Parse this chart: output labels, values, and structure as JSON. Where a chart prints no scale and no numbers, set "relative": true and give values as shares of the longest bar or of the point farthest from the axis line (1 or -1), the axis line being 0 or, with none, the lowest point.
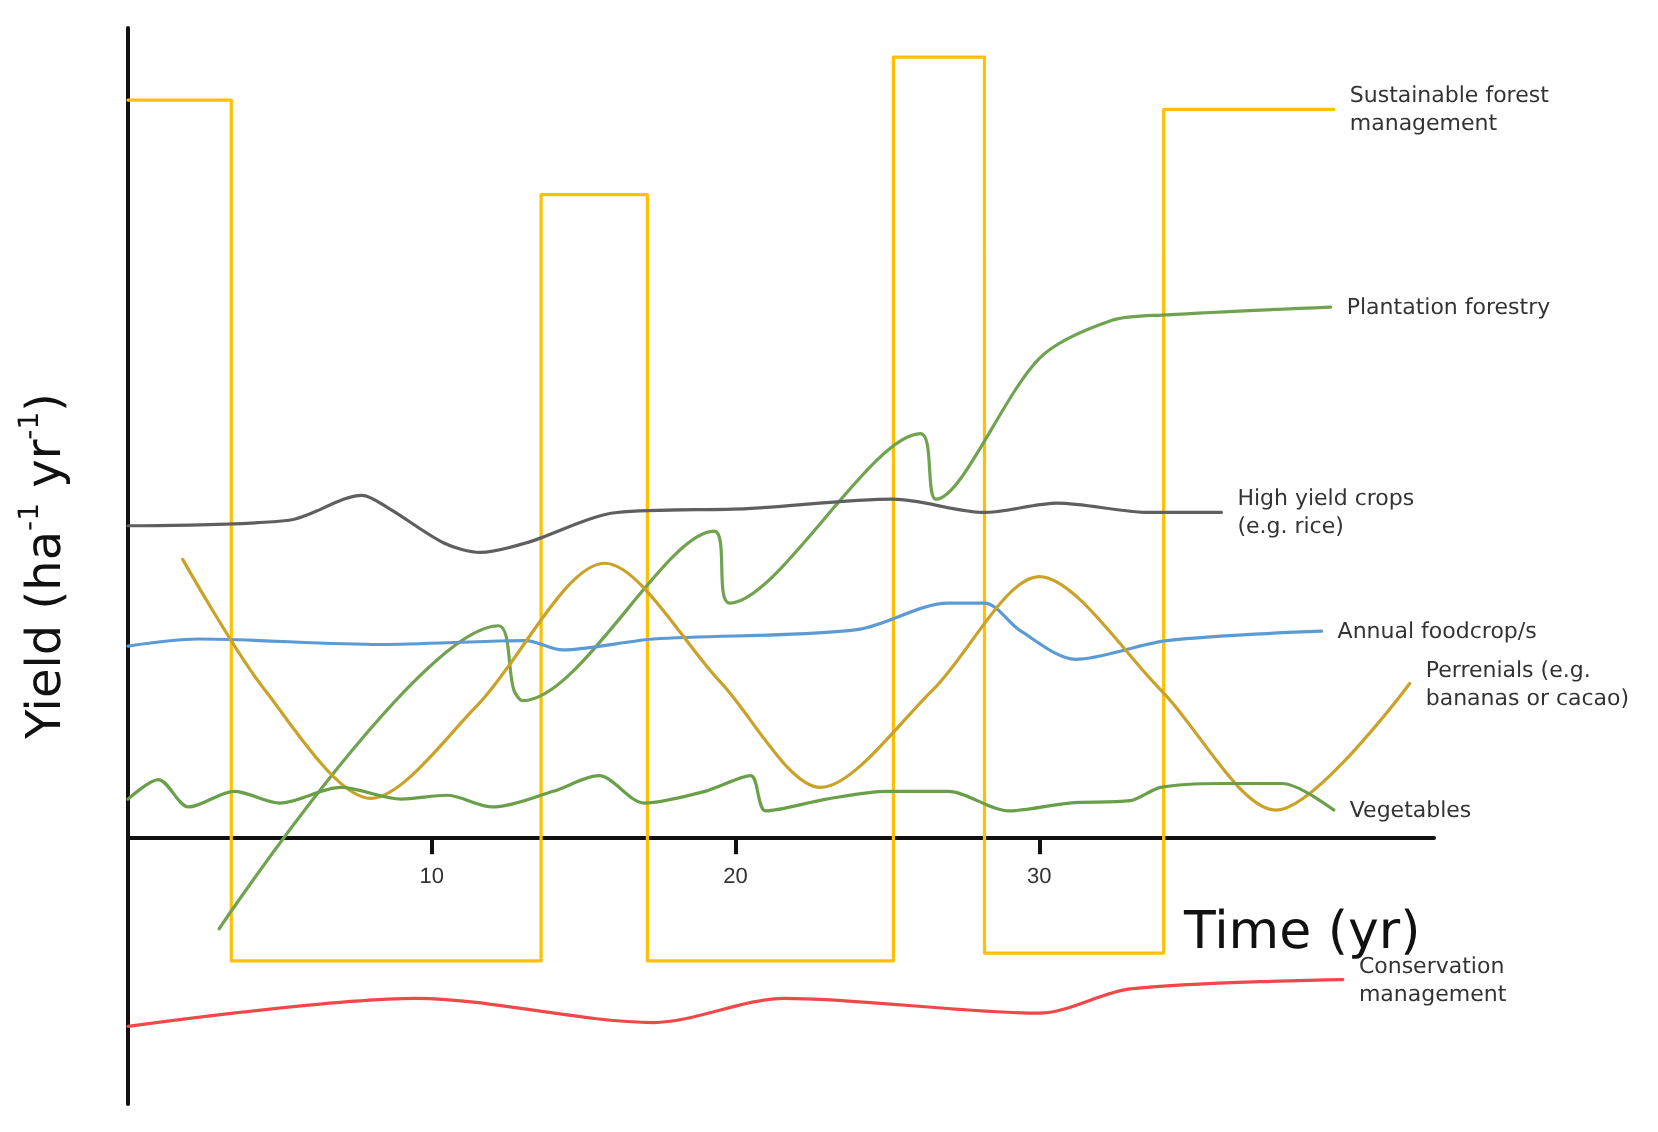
{
  "chart_data": {
    "type": "line",
    "relative": true,
    "xlabel": "Time (yr)",
    "ylabel": "Yield (ha$^{-1}$ yr$^{-1}$)",
    "xlim": [
      0,
      43
    ],
    "xticks": [
      10,
      20,
      30
    ],
    "legend": false,
    "grid": false,
    "marker": "none",
    "series": [
      {
        "name": "Sustainable forest management",
        "type": "step",
        "color": "#ffc000",
        "x": [
          0,
          3.4,
          13.6,
          17.1,
          25.2,
          28.2,
          34.1,
          39.7
        ],
        "values": [
          0.945,
          -0.157,
          0.824,
          -0.157,
          1.0,
          -0.147,
          0.933,
          0.933
        ]
      },
      {
        "name": "Plantation forestry",
        "color": "#70a24f",
        "x": [
          3.0,
          12.2,
          12.7,
          13.0,
          19.3,
          19.8,
          26.1,
          26.6,
          30,
          32.4,
          34.2,
          39.6
        ],
        "values": [
          -0.116,
          0.272,
          0.19,
          0.176,
          0.393,
          0.301,
          0.518,
          0.434,
          0.614,
          0.663,
          0.67,
          0.68
        ]
      },
      {
        "name": "High yield crops (e.g. rice)",
        "color": "#5f5f5f",
        "x": [
          0,
          5.3,
          7.7,
          8.6,
          10.4,
          11.6,
          13.1,
          16.1,
          20.4,
          25.2,
          28.2,
          30.6,
          33.6,
          36
        ],
        "values": [
          0.4,
          0.407,
          0.439,
          0.422,
          0.378,
          0.366,
          0.378,
          0.417,
          0.422,
          0.434,
          0.417,
          0.429,
          0.417,
          0.417
        ]
      },
      {
        "name": "Annual foodcrop/s",
        "color": "#5b9bd5",
        "x": [
          0,
          2.3,
          8.3,
          13.1,
          14.3,
          17.3,
          24,
          27,
          28.2,
          29.4,
          31.2,
          34.2,
          39.3
        ],
        "values": [
          0.246,
          0.255,
          0.248,
          0.253,
          0.241,
          0.255,
          0.267,
          0.301,
          0.301,
          0.265,
          0.229,
          0.253,
          0.265
        ]
      },
      {
        "name": "Perrenials (e.g. bananas or cacao)",
        "color": "#c9a227",
        "x": [
          1.8,
          4.5,
          8,
          11.5,
          15.7,
          19.5,
          22.8,
          26.5,
          30,
          34,
          37.8,
          42.2
        ],
        "values": [
          0.357,
          0.19,
          0.051,
          0.17,
          0.352,
          0.2,
          0.065,
          0.19,
          0.335,
          0.19,
          0.036,
          0.198
        ]
      },
      {
        "name": "Vegetables",
        "color": "#6a9f4a",
        "x": [
          0,
          1,
          2,
          3.5,
          5,
          7,
          9,
          10.5,
          12,
          14,
          15.5,
          17,
          19,
          20.5,
          21,
          23,
          25,
          27,
          29,
          31,
          33,
          34,
          36,
          38,
          39.7
        ],
        "values": [
          0.05,
          0.075,
          0.04,
          0.06,
          0.045,
          0.065,
          0.05,
          0.055,
          0.04,
          0.06,
          0.08,
          0.045,
          0.06,
          0.08,
          0.035,
          0.05,
          0.06,
          0.06,
          0.035,
          0.045,
          0.048,
          0.065,
          0.07,
          0.07,
          0.036
        ]
      },
      {
        "name": "Conservation management",
        "color": "#f04848",
        "x": [
          0,
          9.5,
          17.3,
          21.6,
          30,
          33,
          40
        ],
        "values": [
          -0.241,
          -0.205,
          -0.236,
          -0.205,
          -0.224,
          -0.193,
          -0.181
        ]
      }
    ]
  }
}
